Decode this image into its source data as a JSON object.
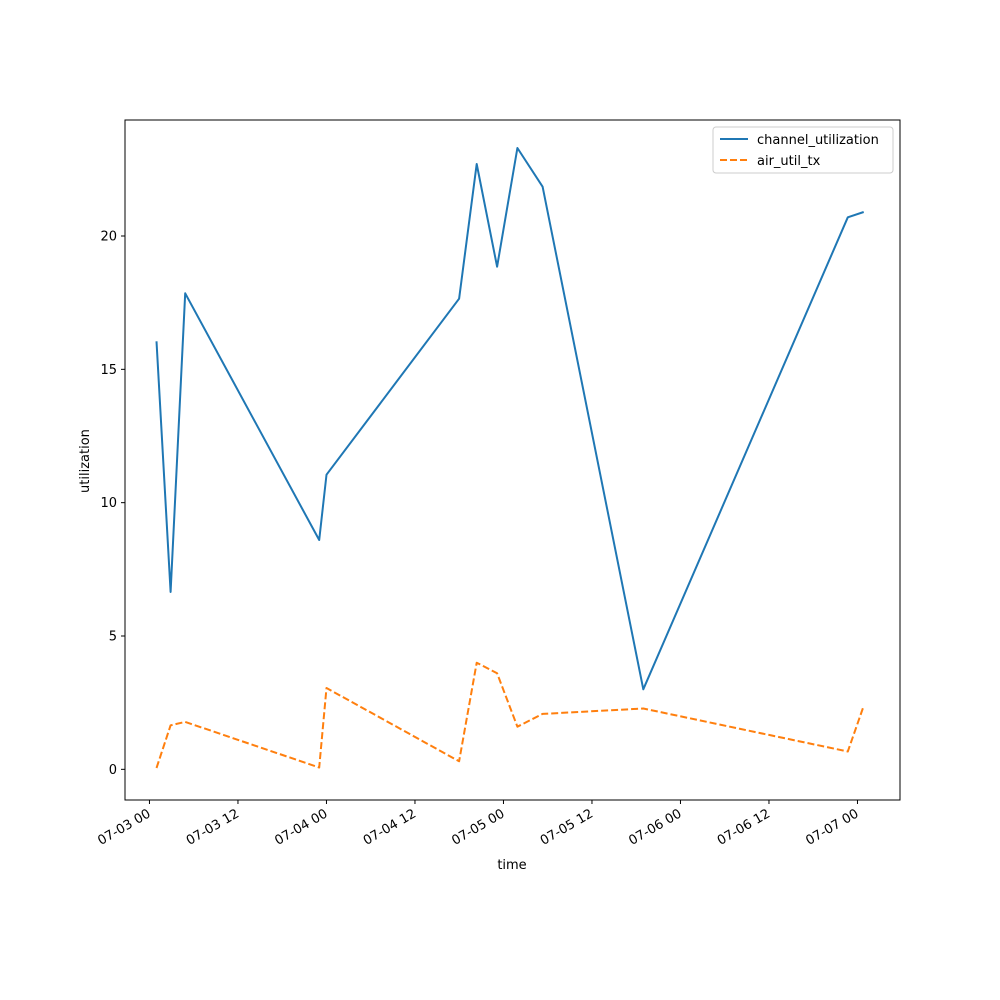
{
  "chart_data": {
    "type": "line",
    "title": "",
    "xlabel": "time",
    "ylabel": "utilization",
    "grid": false,
    "legend_position": "upper right",
    "xlim": [
      "2023-07-02T20:41",
      "2023-07-07T05:46"
    ],
    "ylim": [
      -1.15,
      24.35
    ],
    "x_ticks": [
      {
        "t": "2023-07-03T00:00",
        "label": "07-03 00"
      },
      {
        "t": "2023-07-03T12:00",
        "label": "07-03 12"
      },
      {
        "t": "2023-07-04T00:00",
        "label": "07-04 00"
      },
      {
        "t": "2023-07-04T12:00",
        "label": "07-04 12"
      },
      {
        "t": "2023-07-05T00:00",
        "label": "07-05 00"
      },
      {
        "t": "2023-07-05T12:00",
        "label": "07-05 12"
      },
      {
        "t": "2023-07-06T00:00",
        "label": "07-06 00"
      },
      {
        "t": "2023-07-06T12:00",
        "label": "07-06 12"
      },
      {
        "t": "2023-07-07T00:00",
        "label": "07-07 00"
      }
    ],
    "y_ticks": [
      0,
      5,
      10,
      15,
      20
    ],
    "series": [
      {
        "name": "channel_utilization",
        "color": "#1f77b4",
        "style": "solid",
        "points": [
          {
            "x": "2023-07-03T00:57",
            "y": 16.05
          },
          {
            "x": "2023-07-03T02:52",
            "y": 6.65
          },
          {
            "x": "2023-07-03T04:51",
            "y": 17.85
          },
          {
            "x": "2023-07-03T23:01",
            "y": 8.6
          },
          {
            "x": "2023-07-04T00:00",
            "y": 11.05
          },
          {
            "x": "2023-07-04T17:59",
            "y": 17.65
          },
          {
            "x": "2023-07-04T20:22",
            "y": 22.7
          },
          {
            "x": "2023-07-04T23:08",
            "y": 18.85
          },
          {
            "x": "2023-07-05T01:53",
            "y": 23.3
          },
          {
            "x": "2023-07-05T05:18",
            "y": 21.85
          },
          {
            "x": "2023-07-05T18:58",
            "y": 3.0
          },
          {
            "x": "2023-07-06T22:41",
            "y": 20.7
          },
          {
            "x": "2023-07-07T00:51",
            "y": 20.9
          }
        ]
      },
      {
        "name": "air_util_tx",
        "color": "#ff7f0e",
        "style": "dashed",
        "points": [
          {
            "x": "2023-07-03T00:57",
            "y": 0.05
          },
          {
            "x": "2023-07-03T02:52",
            "y": 1.65
          },
          {
            "x": "2023-07-03T04:51",
            "y": 1.78
          },
          {
            "x": "2023-07-03T23:01",
            "y": 0.07
          },
          {
            "x": "2023-07-04T00:00",
            "y": 3.05
          },
          {
            "x": "2023-07-04T17:59",
            "y": 0.3
          },
          {
            "x": "2023-07-04T20:22",
            "y": 4.0
          },
          {
            "x": "2023-07-04T23:08",
            "y": 3.6
          },
          {
            "x": "2023-07-05T01:53",
            "y": 1.6
          },
          {
            "x": "2023-07-05T05:18",
            "y": 2.08
          },
          {
            "x": "2023-07-05T18:58",
            "y": 2.28
          },
          {
            "x": "2023-07-06T22:41",
            "y": 0.67
          },
          {
            "x": "2023-07-07T00:51",
            "y": 2.38
          }
        ]
      }
    ]
  }
}
